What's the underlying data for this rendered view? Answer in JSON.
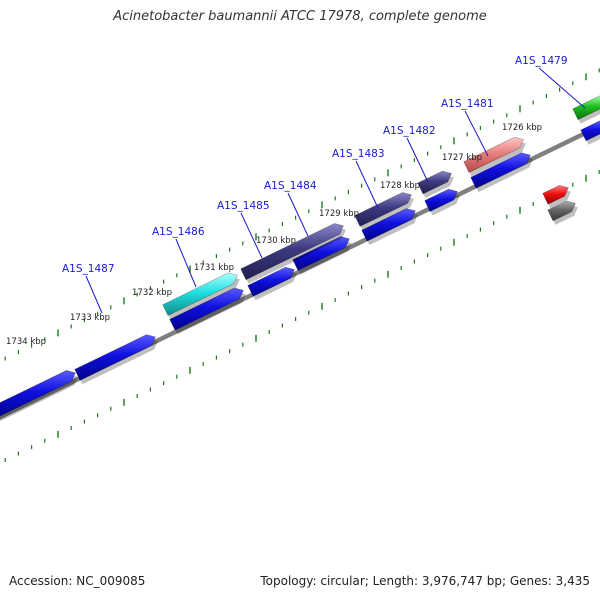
{
  "title": "Acinetobacter baumannii ATCC 17978, complete genome",
  "footer": {
    "accession": "Accession: NC_009085",
    "summary": "Topology: circular; Length: 3,976,747 bp; Genes: 3,435"
  },
  "colors": {
    "background": "#ffffff",
    "backbone": "#808080",
    "tick": "#1a7a1a",
    "gene_label": "#1a1acc",
    "cds_forward_blue": "#1010e0",
    "cds_dark_slate": "#3e3a80",
    "cds_cyan": "#20e0e0",
    "cds_salmon": "#e88080",
    "cds_green": "#20c020",
    "cds_red": "#ee1010",
    "cds_gray": "#666666"
  },
  "ruler": {
    "unit": "kbp",
    "ticks": [
      {
        "value": 1734,
        "label": "1734 kbp"
      },
      {
        "value": 1733,
        "label": "1733 kbp"
      },
      {
        "value": 1732,
        "label": "1732 kbp"
      },
      {
        "value": 1731,
        "label": "1731 kbp"
      },
      {
        "value": 1730,
        "label": "1730 kbp"
      },
      {
        "value": 1729,
        "label": "1729 kbp"
      },
      {
        "value": 1728,
        "label": "1728 kbp"
      },
      {
        "value": 1727,
        "label": "1727 kbp"
      },
      {
        "value": 1726,
        "label": "1726 kbp"
      }
    ]
  },
  "gene_labels": [
    {
      "label": "A1S_1487"
    },
    {
      "label": "A1S_1486"
    },
    {
      "label": "A1S_1485"
    },
    {
      "label": "A1S_1484"
    },
    {
      "label": "A1S_1483"
    },
    {
      "label": "A1S_1482"
    },
    {
      "label": "A1S_1481"
    },
    {
      "label": "A1S_1479"
    }
  ]
}
